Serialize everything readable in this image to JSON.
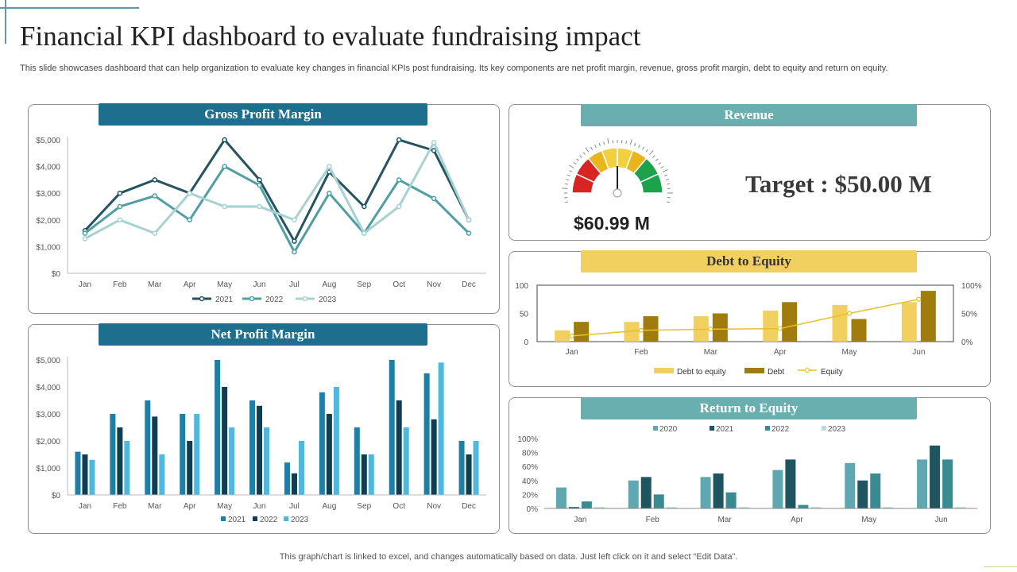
{
  "page": {
    "title": "Financial KPI dashboard to evaluate fundraising impact",
    "subtitle": "This slide showcases dashboard that can help organization to evaluate key changes in financial KPIs post fundraising. Its key components are net profit margin, revenue, gross profit margin, debt to equity and return on equity.",
    "footer": "This graph/chart is linked to excel, and changes automatically based on data. Just left click on it and select “Edit Data”."
  },
  "colors": {
    "banner_dark": "#1e6f8e",
    "banner_teal": "#6aafb0",
    "banner_yellow": "#f2d060"
  },
  "revenue": {
    "banner": "Revenue",
    "gauge_value": "$60.99 M",
    "target_text": "Target : $50.00 M",
    "gauge_fraction": 0.5
  },
  "chart_data": [
    {
      "id": "gross",
      "type": "line",
      "title": "Gross Profit Margin",
      "categories": [
        "Jan",
        "Feb",
        "Mar",
        "Apr",
        "May",
        "Jun",
        "Jul",
        "Aug",
        "Sep",
        "Oct",
        "Nov",
        "Dec"
      ],
      "ylim": [
        0,
        5000
      ],
      "yticks": [
        "$0",
        "$1,000",
        "$2,000",
        "$3,000",
        "$4,000",
        "$5,000"
      ],
      "legend_position": "bottom",
      "series": [
        {
          "name": "2021",
          "color": "#24545f",
          "values": [
            1600,
            3000,
            3500,
            3000,
            5000,
            3500,
            1200,
            3800,
            2500,
            5000,
            4600,
            2000
          ]
        },
        {
          "name": "2022",
          "color": "#4f9fa3",
          "values": [
            1500,
            2500,
            2900,
            2000,
            4000,
            3300,
            800,
            3000,
            1500,
            3500,
            2800,
            1500
          ]
        },
        {
          "name": "2023",
          "color": "#a8d1d2",
          "values": [
            1300,
            2000,
            1500,
            3000,
            2500,
            2500,
            2000,
            4000,
            1500,
            2500,
            4900,
            2000
          ]
        }
      ]
    },
    {
      "id": "net",
      "type": "bar",
      "title": "Net Profit Margin",
      "categories": [
        "Jan",
        "Feb",
        "Mar",
        "Apr",
        "May",
        "Jun",
        "Jul",
        "Aug",
        "Sep",
        "Oct",
        "Nov",
        "Dec"
      ],
      "ylim": [
        0,
        5000
      ],
      "yticks": [
        "$0",
        "$1,000",
        "$2,000",
        "$3,000",
        "$4,000",
        "$5,000"
      ],
      "legend_position": "bottom",
      "series": [
        {
          "name": "2021",
          "color": "#1d7ea6",
          "values": [
            1600,
            3000,
            3500,
            3000,
            5000,
            3500,
            1200,
            3800,
            2500,
            5000,
            4500,
            2000
          ]
        },
        {
          "name": "2022",
          "color": "#0f3d52",
          "values": [
            1500,
            2500,
            2900,
            2000,
            4000,
            3300,
            800,
            3000,
            1500,
            3500,
            2800,
            1500
          ]
        },
        {
          "name": "2023",
          "color": "#4fb8dc",
          "values": [
            1300,
            2000,
            1500,
            3000,
            2500,
            2500,
            2000,
            4000,
            1500,
            2500,
            4900,
            2000
          ]
        }
      ]
    },
    {
      "id": "debt",
      "type": "bar",
      "title": "Debt to Equity",
      "categories": [
        "Jan",
        "Feb",
        "Mar",
        "Apr",
        "May",
        "Jun"
      ],
      "ylim": [
        0,
        100
      ],
      "yticks": [
        "0",
        "50",
        "100"
      ],
      "y2lim": [
        0,
        100
      ],
      "y2ticks": [
        "0%",
        "50%",
        "100%"
      ],
      "legend_position": "bottom",
      "series": [
        {
          "name": "Debt to equity",
          "color": "#f2d060",
          "values": [
            20,
            35,
            45,
            55,
            65,
            70
          ]
        },
        {
          "name": "Debt",
          "color": "#a07b0e",
          "values": [
            35,
            45,
            50,
            70,
            40,
            90
          ]
        }
      ],
      "line_series": {
        "name": "Equity",
        "color": "#e6c02a",
        "values": [
          10,
          20,
          22,
          23,
          50,
          75
        ]
      }
    },
    {
      "id": "roe",
      "type": "bar",
      "title": "Return to Equity",
      "categories": [
        "Jan",
        "Feb",
        "Mar",
        "Apr",
        "May",
        "Jun"
      ],
      "ylim": [
        0,
        100
      ],
      "yticks": [
        "0%",
        "20%",
        "40%",
        "60%",
        "80%",
        "100%"
      ],
      "legend_position": "top",
      "series": [
        {
          "name": "2020",
          "color": "#5fa8b2",
          "values": [
            30,
            40,
            45,
            55,
            65,
            70
          ]
        },
        {
          "name": "2021",
          "color": "#1f5560",
          "values": [
            2,
            45,
            50,
            70,
            40,
            90
          ]
        },
        {
          "name": "2022",
          "color": "#3a8a92",
          "values": [
            10,
            20,
            23,
            5,
            50,
            70
          ]
        },
        {
          "name": "2023",
          "color": "#b7dde0",
          "values": [
            2,
            2,
            2,
            2,
            2,
            2
          ]
        }
      ]
    }
  ]
}
